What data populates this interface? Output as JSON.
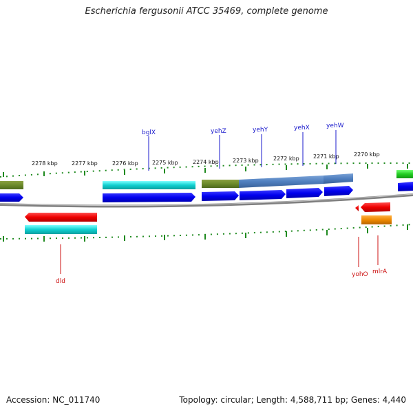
{
  "title": "Escherichia fergusonii ATCC 35469, complete genome",
  "footer": {
    "accession": "Accession: NC_011740",
    "stats": "Topology: circular; Length: 4,588,711 bp; Genes: 4,440"
  },
  "colors": {
    "forward_label": "#1a1acc",
    "reverse_label": "#cc1111",
    "backbone": "#808080",
    "tick": "#1f8a1f"
  },
  "scale": {
    "labels": [
      "2278 kbp",
      "2277 kbp",
      "2276 kbp",
      "2275 kbp",
      "2274 kbp",
      "2273 kbp",
      "2272 kbp",
      "2271 kbp",
      "2270 kbp"
    ]
  },
  "forward_genes": [
    "bglX",
    "yehZ",
    "yehY",
    "yehX",
    "yehW"
  ],
  "reverse_genes": [
    "dld",
    "yohO",
    "mlrA"
  ]
}
